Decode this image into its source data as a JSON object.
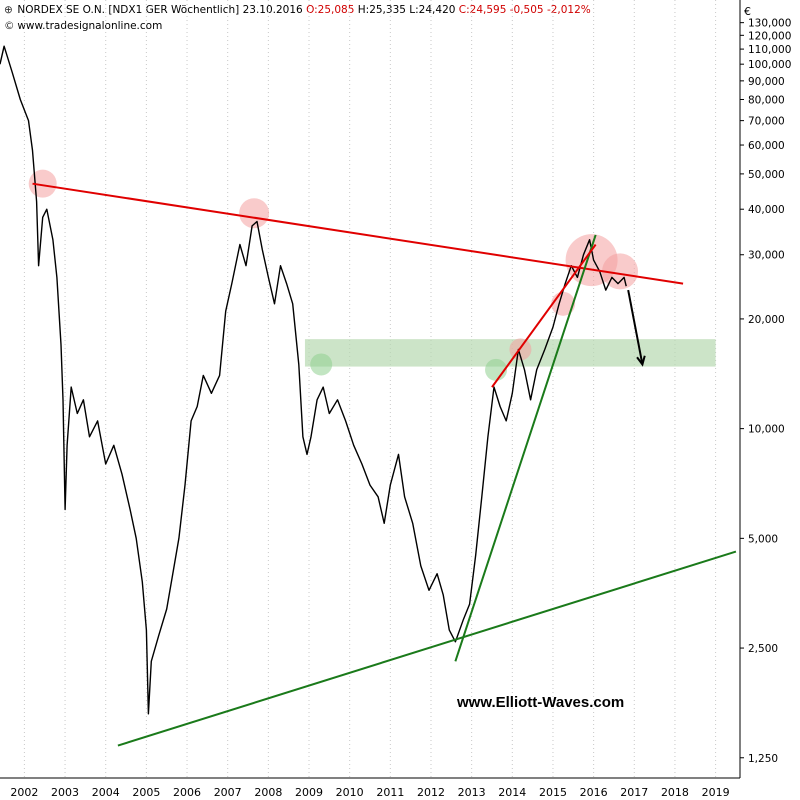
{
  "header": {
    "instrument": "NORDEX SE O.N.",
    "code": "[NDX1 GER",
    "interval": "Wöchentlich]",
    "date": "23.10.2016",
    "open": "O:25,085",
    "high": "H:25,335",
    "low": "L:24,420",
    "close": "C:24,595",
    "change": "-0,505",
    "change_pct": "-2,012%",
    "source": "www.tradesignalonline.com",
    "currency": "€"
  },
  "watermark": "www.Elliott-Waves.com",
  "colors": {
    "price": "#000000",
    "resistance": "#e00000",
    "support": "#1a7a1a",
    "zone_fill": "#b7d9b0",
    "marker_red": "#f4a0a0",
    "marker_green": "#8fcf8f",
    "grid": "#c8c8c8",
    "negative_text": "#d00000"
  },
  "chart_data": {
    "type": "line",
    "title": "NORDEX SE O.N. [NDX1 GER Wöchentlich]",
    "yscale": "log",
    "ylim": [
      1.1,
      150
    ],
    "xlim": [
      2001.4,
      2019.6
    ],
    "grid": "vertical",
    "y_ticks": [
      1.25,
      2.5,
      5,
      10,
      20,
      30,
      40,
      50,
      60,
      70,
      80,
      90,
      100,
      110,
      120,
      130
    ],
    "y_tick_labels": [
      "1,250",
      "2,500",
      "5,000",
      "10,000",
      "20,000",
      "30,000",
      "40,000",
      "50,000",
      "60,000",
      "70,000",
      "80,000",
      "90,000",
      "100,000",
      "110,000",
      "120,000",
      "130,000"
    ],
    "x_ticks": [
      2002,
      2003,
      2004,
      2005,
      2006,
      2007,
      2008,
      2009,
      2010,
      2011,
      2012,
      2013,
      2014,
      2015,
      2016,
      2017,
      2018,
      2019
    ],
    "x_tick_labels": [
      "2002",
      "2003",
      "2004",
      "2005",
      "2006",
      "2007",
      "2008",
      "2009",
      "2010",
      "2011",
      "2012",
      "2013",
      "2014",
      "2015",
      "2016",
      "2017",
      "2018",
      "2019"
    ],
    "series": [
      {
        "type": "price",
        "points": [
          [
            2001.4,
            100
          ],
          [
            2001.5,
            112
          ],
          [
            2001.7,
            95
          ],
          [
            2001.9,
            80
          ],
          [
            2002.1,
            70
          ],
          [
            2002.2,
            58
          ],
          [
            2002.3,
            42
          ],
          [
            2002.35,
            28
          ],
          [
            2002.45,
            38
          ],
          [
            2002.55,
            40
          ],
          [
            2002.7,
            33
          ],
          [
            2002.8,
            26
          ],
          [
            2002.9,
            17
          ],
          [
            2002.95,
            12
          ],
          [
            2003.0,
            6.0
          ],
          [
            2003.05,
            9.0
          ],
          [
            2003.15,
            13
          ],
          [
            2003.3,
            11
          ],
          [
            2003.45,
            12
          ],
          [
            2003.6,
            9.5
          ],
          [
            2003.8,
            10.5
          ],
          [
            2004.0,
            8.0
          ],
          [
            2004.2,
            9.0
          ],
          [
            2004.4,
            7.5
          ],
          [
            2004.6,
            6.0
          ],
          [
            2004.75,
            5.0
          ],
          [
            2004.9,
            3.8
          ],
          [
            2005.0,
            2.8
          ],
          [
            2005.05,
            1.65
          ],
          [
            2005.12,
            2.3
          ],
          [
            2005.3,
            2.7
          ],
          [
            2005.5,
            3.2
          ],
          [
            2005.65,
            4.0
          ],
          [
            2005.8,
            5.0
          ],
          [
            2005.95,
            7.0
          ],
          [
            2006.1,
            10.5
          ],
          [
            2006.25,
            11.5
          ],
          [
            2006.4,
            14
          ],
          [
            2006.6,
            12.5
          ],
          [
            2006.8,
            14
          ],
          [
            2006.95,
            21
          ],
          [
            2007.1,
            25
          ],
          [
            2007.3,
            32
          ],
          [
            2007.45,
            28
          ],
          [
            2007.6,
            36
          ],
          [
            2007.72,
            37
          ],
          [
            2007.85,
            31
          ],
          [
            2008.0,
            26
          ],
          [
            2008.15,
            22
          ],
          [
            2008.3,
            28
          ],
          [
            2008.45,
            25
          ],
          [
            2008.6,
            22
          ],
          [
            2008.75,
            15
          ],
          [
            2008.85,
            9.5
          ],
          [
            2008.95,
            8.5
          ],
          [
            2009.05,
            9.5
          ],
          [
            2009.2,
            12
          ],
          [
            2009.35,
            13
          ],
          [
            2009.5,
            11
          ],
          [
            2009.7,
            12
          ],
          [
            2009.9,
            10.5
          ],
          [
            2010.1,
            9.0
          ],
          [
            2010.3,
            8.0
          ],
          [
            2010.5,
            7.0
          ],
          [
            2010.7,
            6.5
          ],
          [
            2010.85,
            5.5
          ],
          [
            2011.0,
            7.0
          ],
          [
            2011.2,
            8.5
          ],
          [
            2011.35,
            6.5
          ],
          [
            2011.55,
            5.5
          ],
          [
            2011.75,
            4.2
          ],
          [
            2011.95,
            3.6
          ],
          [
            2012.15,
            4.0
          ],
          [
            2012.3,
            3.5
          ],
          [
            2012.45,
            2.8
          ],
          [
            2012.6,
            2.6
          ],
          [
            2012.8,
            3.0
          ],
          [
            2012.95,
            3.3
          ],
          [
            2013.1,
            4.5
          ],
          [
            2013.25,
            6.5
          ],
          [
            2013.4,
            9.5
          ],
          [
            2013.55,
            13
          ],
          [
            2013.7,
            11.5
          ],
          [
            2013.85,
            10.5
          ],
          [
            2014.0,
            12.5
          ],
          [
            2014.15,
            16.5
          ],
          [
            2014.3,
            14.5
          ],
          [
            2014.45,
            12
          ],
          [
            2014.6,
            14.5
          ],
          [
            2014.8,
            16.5
          ],
          [
            2015.0,
            19
          ],
          [
            2015.15,
            22
          ],
          [
            2015.3,
            25
          ],
          [
            2015.45,
            28
          ],
          [
            2015.6,
            26
          ],
          [
            2015.75,
            30
          ],
          [
            2015.9,
            33
          ],
          [
            2016.0,
            29
          ],
          [
            2016.15,
            27
          ],
          [
            2016.3,
            24
          ],
          [
            2016.45,
            26
          ],
          [
            2016.6,
            25
          ],
          [
            2016.75,
            26
          ],
          [
            2016.8,
            24.6
          ]
        ]
      }
    ],
    "trendlines": [
      {
        "name": "resistance",
        "color": "#e00000",
        "from": [
          2002.2,
          47
        ],
        "to": [
          2018.2,
          25
        ]
      },
      {
        "name": "steep-support",
        "color": "#1a7a1a",
        "from": [
          2012.6,
          2.3
        ],
        "to": [
          2016.05,
          34
        ]
      },
      {
        "name": "long-support",
        "color": "#1a7a1a",
        "from": [
          2004.3,
          1.35
        ],
        "to": [
          2019.5,
          4.6
        ]
      },
      {
        "name": "red-channel",
        "color": "#e00000",
        "from": [
          2013.5,
          13
        ],
        "to": [
          2016.05,
          32
        ]
      }
    ],
    "zones": [
      {
        "name": "support-zone",
        "color": "#b7d9b0",
        "x": [
          2008.9,
          2019.0
        ],
        "y": [
          14.8,
          17.6
        ]
      }
    ],
    "markers": [
      {
        "color": "#f4a0a0",
        "x": 2002.45,
        "y": 47,
        "r": 14
      },
      {
        "color": "#f4a0a0",
        "x": 2007.65,
        "y": 39,
        "r": 15
      },
      {
        "color": "#f4a0a0",
        "x": 2015.95,
        "y": 29,
        "r": 26
      },
      {
        "color": "#f4a0a0",
        "x": 2016.65,
        "y": 27,
        "r": 18
      },
      {
        "color": "#f4a0a0",
        "x": 2015.25,
        "y": 22,
        "r": 12
      },
      {
        "color": "#f4a0a0",
        "x": 2014.2,
        "y": 16.5,
        "r": 11
      },
      {
        "color": "#8fcf8f",
        "x": 2009.3,
        "y": 15,
        "r": 11
      },
      {
        "color": "#8fcf8f",
        "x": 2013.6,
        "y": 14.5,
        "r": 11
      }
    ],
    "arrow": {
      "from": [
        2016.85,
        24
      ],
      "to": [
        2017.2,
        15
      ],
      "color": "#000000"
    }
  }
}
